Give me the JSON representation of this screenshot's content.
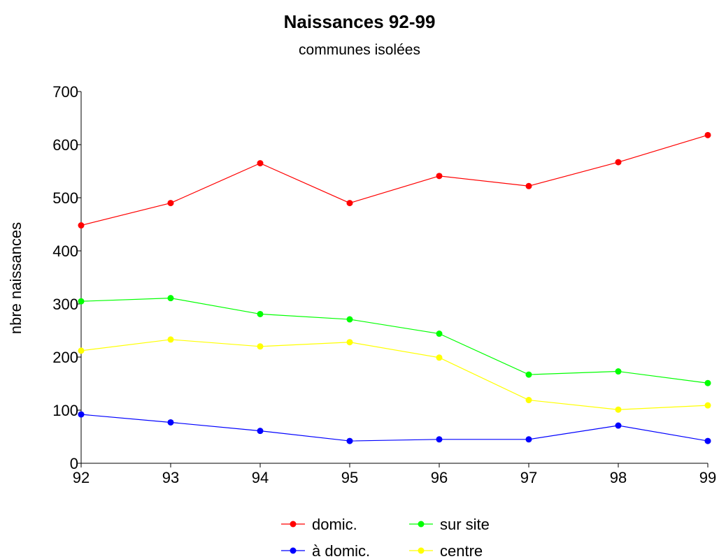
{
  "chart_data": {
    "type": "line",
    "title": "Naissances 92-99",
    "subtitle": "communes isolées",
    "xlabel": "",
    "ylabel": "nbre naissances",
    "categories": [
      "92",
      "93",
      "94",
      "95",
      "96",
      "97",
      "98",
      "99"
    ],
    "ylim": [
      0,
      700
    ],
    "yticks": [
      0,
      100,
      200,
      300,
      400,
      500,
      600,
      700
    ],
    "grid": false,
    "legend_position": "bottom",
    "series": [
      {
        "name": "domic.",
        "color": "#ff0000",
        "values": [
          448,
          490,
          565,
          490,
          541,
          522,
          567,
          618
        ]
      },
      {
        "name": "sur site",
        "color": "#00ff00",
        "values": [
          305,
          311,
          281,
          271,
          244,
          167,
          173,
          151
        ]
      },
      {
        "name": "à domic.",
        "color": "#0000ff",
        "values": [
          92,
          77,
          61,
          42,
          45,
          45,
          71,
          42
        ]
      },
      {
        "name": "centre",
        "color": "#ffff00",
        "values": [
          212,
          233,
          220,
          228,
          199,
          119,
          101,
          109
        ]
      }
    ]
  }
}
